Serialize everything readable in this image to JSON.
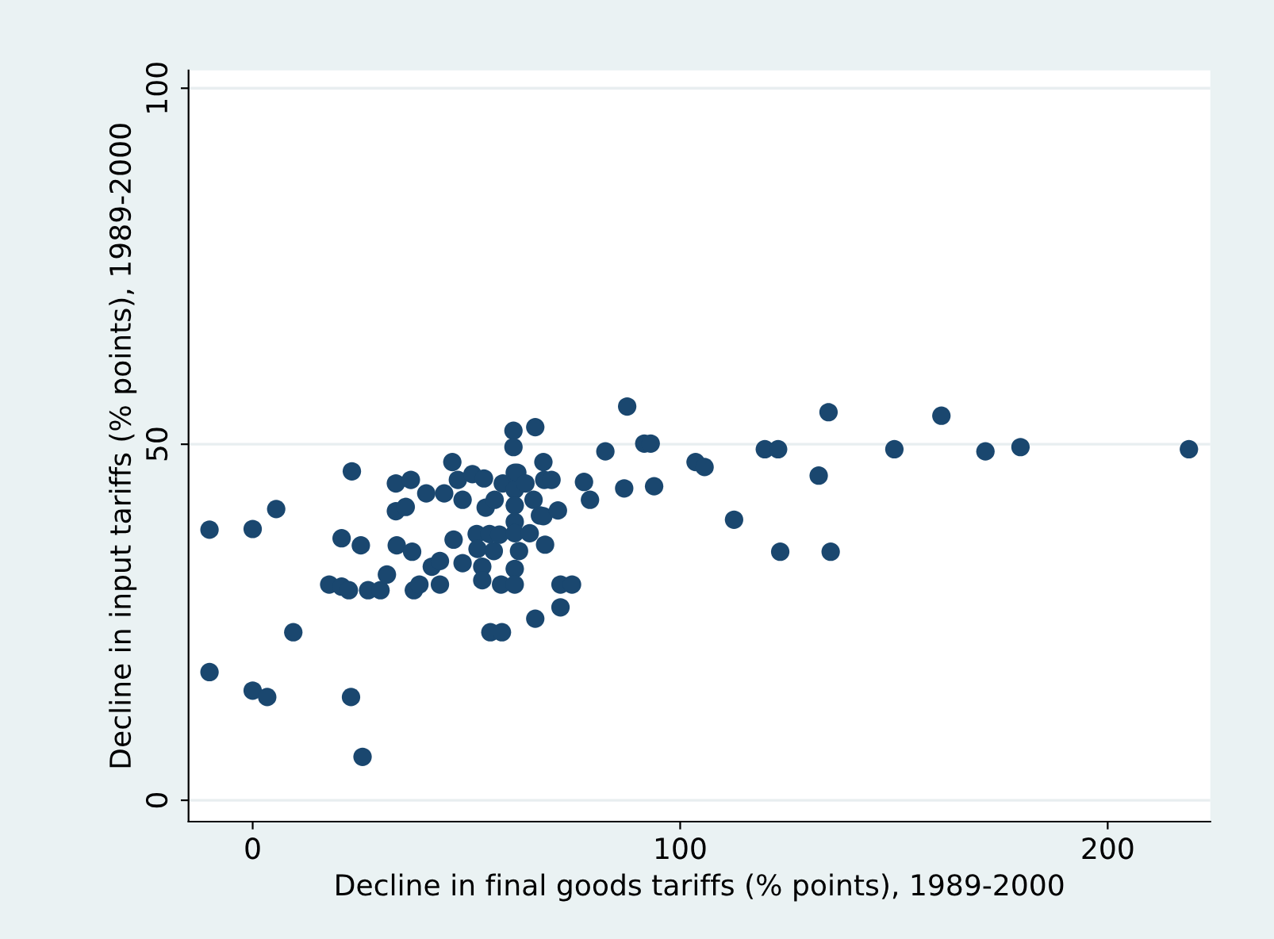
{
  "chart_data": {
    "type": "scatter",
    "xlabel": "Decline in final goods tariffs (% points), 1989-2000",
    "ylabel": "Decline in input tariffs (% points), 1989-2000",
    "xlim": [
      -15,
      224
    ],
    "ylim": [
      -3,
      102.5
    ],
    "xticks": [
      0,
      100,
      200
    ],
    "yticks": [
      0,
      50,
      100
    ],
    "grid": "y",
    "marker": "circle",
    "series": [
      {
        "color": "#1a476f",
        "x": [
          -10.1,
          -10.1,
          0,
          0,
          3.4,
          5.5,
          9.5,
          17.9,
          20.8,
          20.8,
          23.2,
          23.0,
          25.3,
          25.7,
          22.5,
          27,
          29.9,
          31.4,
          33.5,
          33.5,
          33.7,
          35.8,
          37,
          37.3,
          37.7,
          39,
          40.6,
          41.9,
          43.8,
          43.8,
          44.8,
          46.7,
          47.0,
          48,
          49.1,
          49.1,
          51.4,
          52.4,
          52.6,
          53.7,
          53.7,
          54.1,
          54.5,
          55.4,
          55.6,
          56.4,
          56.6,
          57.7,
          58.1,
          58.3,
          58.5,
          61.0,
          61,
          61.3,
          61.3,
          61.3,
          61.3,
          61.3,
          61.3,
          61.3,
          61.9,
          62.3,
          63.8,
          64.8,
          66.1,
          66.1,
          65.7,
          67.2,
          68,
          68.2,
          68.4,
          68,
          69.9,
          71.4,
          72,
          72,
          74.7,
          77.5,
          78.9,
          82.5,
          86.9,
          87.6,
          91.6,
          93.1,
          93.9,
          103.6,
          105.7,
          112.6,
          119.8,
          122.9,
          123.4,
          132.4,
          134.7,
          135.2,
          150.1,
          161.1,
          171.4,
          179.6,
          219
        ],
        "values": [
          38.0,
          18.0,
          38.1,
          15.4,
          14.5,
          40.9,
          23.6,
          30.3,
          36.8,
          30.0,
          46.2,
          14.5,
          35.8,
          6.1,
          29.5,
          29.5,
          29.5,
          31.7,
          44.5,
          40.6,
          35.8,
          41.2,
          45,
          34.9,
          29.5,
          30.3,
          43.1,
          32.8,
          33.6,
          30.3,
          43.1,
          47.5,
          36.6,
          45,
          42.2,
          33.3,
          45.8,
          37.4,
          35.3,
          32.8,
          30.9,
          45.2,
          41.1,
          37.4,
          23.6,
          35.0,
          42.2,
          37.3,
          30.3,
          23.6,
          44.5,
          51.9,
          49.6,
          46.0,
          43.6,
          41.4,
          39.1,
          37.5,
          32.5,
          30.3,
          46,
          35.0,
          44.5,
          37.5,
          52.4,
          25.5,
          42.2,
          40.0,
          47.5,
          45,
          35.9,
          39.9,
          45,
          40.7,
          30.3,
          27.1,
          30.3,
          44.7,
          42.2,
          49.0,
          43.8,
          55.3,
          50.1,
          50.1,
          44.1,
          47.5,
          46.8,
          39.4,
          49.3,
          49.3,
          34.9,
          45.6,
          54.5,
          34.9,
          49.3,
          54.0,
          49.0,
          49.6,
          49.3
        ]
      }
    ]
  }
}
